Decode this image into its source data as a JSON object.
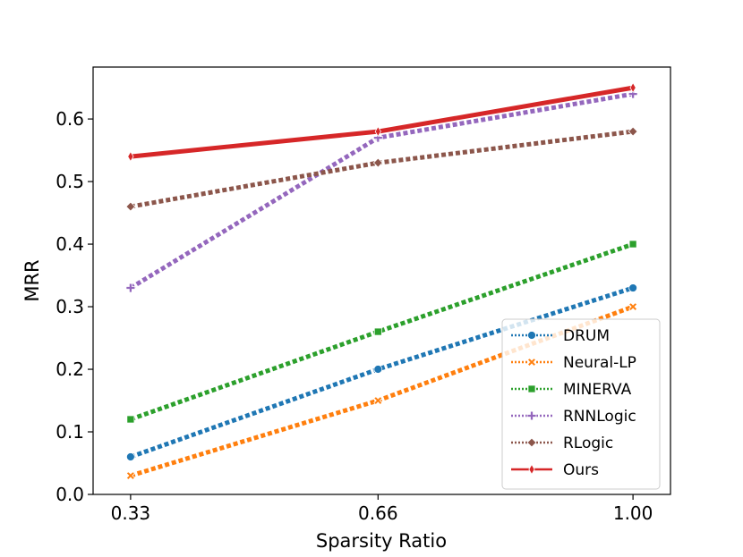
{
  "chart_data": {
    "type": "line",
    "title": "",
    "xlabel": "Sparsity Ratio",
    "ylabel": "MRR",
    "x": [
      0.33,
      0.66,
      1.0
    ],
    "x_tick_labels": [
      "0.33",
      "0.66",
      "1.00"
    ],
    "y_ticks": [
      0.0,
      0.1,
      0.2,
      0.3,
      0.4,
      0.5,
      0.6
    ],
    "y_tick_labels": [
      "0.0",
      "0.1",
      "0.2",
      "0.3",
      "0.4",
      "0.5",
      "0.6"
    ],
    "xlim": [
      0.28,
      1.05
    ],
    "ylim": [
      0.0,
      0.683
    ],
    "grid": false,
    "legend_position": "lower-right",
    "series": [
      {
        "name": "DRUM",
        "values": [
          0.06,
          0.2,
          0.33
        ],
        "color": "#1f77b4",
        "marker": "circle",
        "style": "dotted"
      },
      {
        "name": "Neural-LP",
        "values": [
          0.03,
          0.15,
          0.3
        ],
        "color": "#ff7f0e",
        "marker": "x",
        "style": "dotted"
      },
      {
        "name": "MINERVA",
        "values": [
          0.12,
          0.26,
          0.4
        ],
        "color": "#2ca02c",
        "marker": "square",
        "style": "dotted"
      },
      {
        "name": "RNNLogic",
        "values": [
          0.33,
          0.57,
          0.64
        ],
        "color": "#9467bd",
        "marker": "plus",
        "style": "dotted"
      },
      {
        "name": "RLogic",
        "values": [
          0.46,
          0.53,
          0.58
        ],
        "color": "#8c564b",
        "marker": "diamond",
        "style": "dotted"
      },
      {
        "name": "Ours",
        "values": [
          0.54,
          0.58,
          0.65
        ],
        "color": "#d62728",
        "marker": "thin-diamond",
        "style": "solid"
      }
    ]
  }
}
